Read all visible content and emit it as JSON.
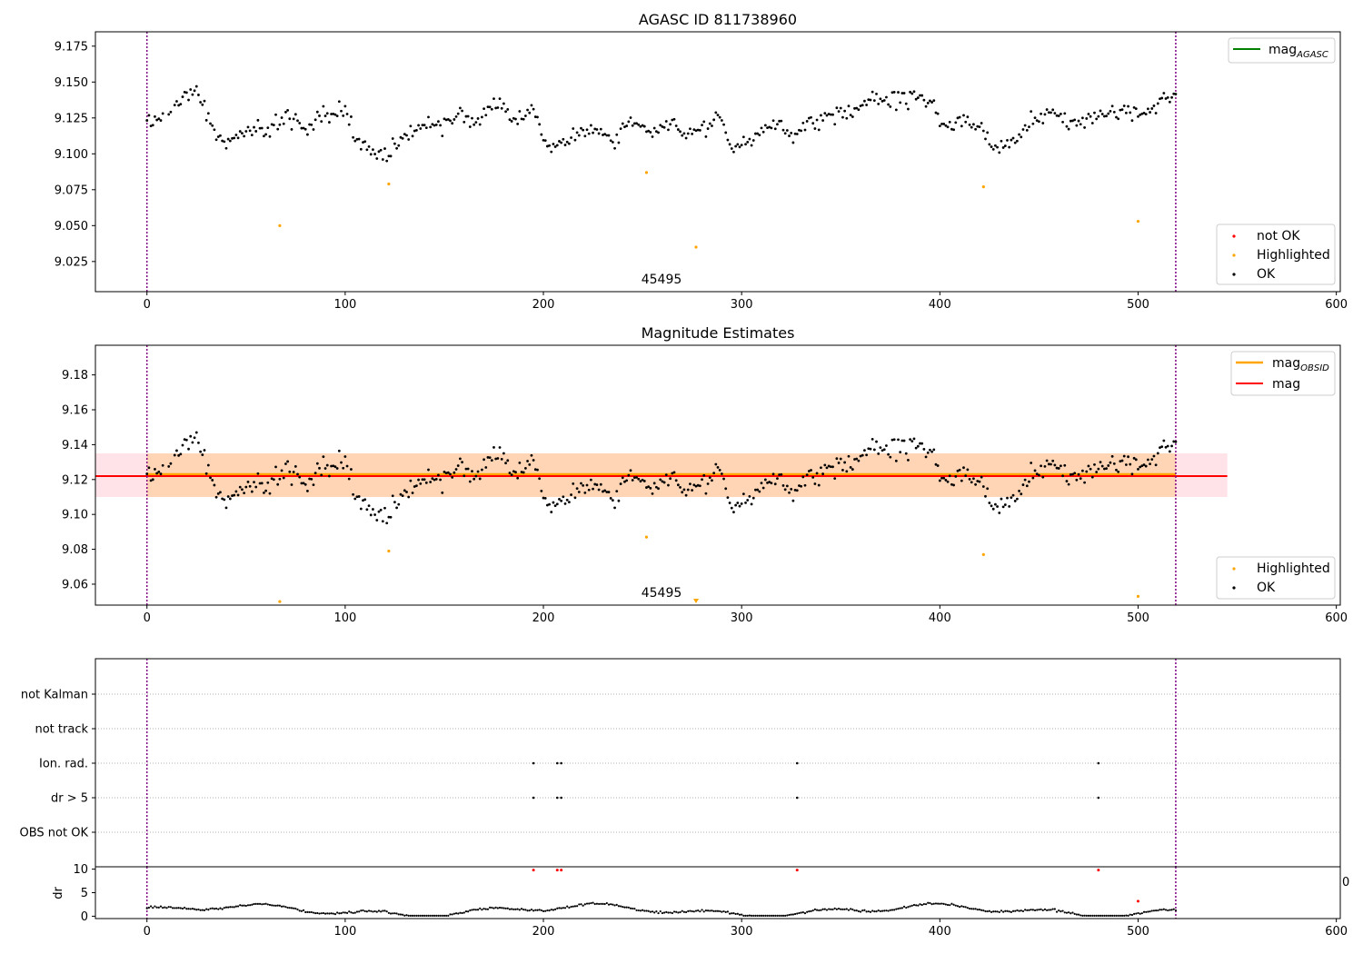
{
  "chart_data": [
    {
      "type": "scatter",
      "title": "AGASC ID 811738960",
      "xlabel": "",
      "ylabel": "",
      "xlim": [
        -26,
        602
      ],
      "ylim": [
        9.004,
        9.185
      ],
      "xticks": [
        0,
        100,
        200,
        300,
        400,
        500,
        600
      ],
      "yticks": [
        9.025,
        9.05,
        9.075,
        9.1,
        9.125,
        9.15,
        9.175
      ],
      "ytick_labels": [
        "9.025",
        "9.050",
        "9.075",
        "9.100",
        "9.125",
        "9.150",
        "9.175"
      ],
      "vlines": [
        0,
        519
      ],
      "annotation": {
        "text": "45495",
        "x": 260,
        "y": 9.012
      },
      "legend_top": {
        "placement": "top-right",
        "entries": [
          {
            "label_main": "mag",
            "label_sub": "AGASC",
            "color": "#008000"
          }
        ]
      },
      "legend_bottom": {
        "placement": "bottom-right",
        "entries": [
          {
            "label": "not OK",
            "color": "#ff0000"
          },
          {
            "label": "Highlighted",
            "color": "#ffa500"
          },
          {
            "label": "OK",
            "color": "#000000"
          }
        ]
      },
      "highlighted": [
        [
          67,
          9.05
        ],
        [
          122,
          9.079
        ],
        [
          252,
          9.087
        ],
        [
          277,
          9.035
        ],
        [
          422,
          9.077
        ],
        [
          500,
          9.053
        ]
      ],
      "ok_anchors": [
        [
          0,
          9.121
        ],
        [
          10,
          9.127
        ],
        [
          18,
          9.14
        ],
        [
          25,
          9.146
        ],
        [
          32,
          9.119
        ],
        [
          40,
          9.106
        ],
        [
          48,
          9.116
        ],
        [
          55,
          9.121
        ],
        [
          62,
          9.113
        ],
        [
          70,
          9.128
        ],
        [
          80,
          9.117
        ],
        [
          90,
          9.126
        ],
        [
          100,
          9.132
        ],
        [
          108,
          9.106
        ],
        [
          116,
          9.098
        ],
        [
          124,
          9.104
        ],
        [
          132,
          9.114
        ],
        [
          140,
          9.123
        ],
        [
          148,
          9.118
        ],
        [
          156,
          9.13
        ],
        [
          165,
          9.123
        ],
        [
          175,
          9.134
        ],
        [
          185,
          9.125
        ],
        [
          195,
          9.13
        ],
        [
          200,
          9.11
        ],
        [
          208,
          9.105
        ],
        [
          216,
          9.112
        ],
        [
          225,
          9.117
        ],
        [
          235,
          9.112
        ],
        [
          245,
          9.12
        ],
        [
          255,
          9.116
        ],
        [
          265,
          9.122
        ],
        [
          272,
          9.114
        ],
        [
          282,
          9.12
        ],
        [
          288,
          9.128
        ],
        [
          295,
          9.103
        ],
        [
          305,
          9.108
        ],
        [
          315,
          9.122
        ],
        [
          325,
          9.113
        ],
        [
          335,
          9.119
        ],
        [
          345,
          9.127
        ],
        [
          355,
          9.13
        ],
        [
          365,
          9.137
        ],
        [
          375,
          9.137
        ],
        [
          385,
          9.14
        ],
        [
          395,
          9.136
        ],
        [
          402,
          9.12
        ],
        [
          410,
          9.125
        ],
        [
          420,
          9.118
        ],
        [
          428,
          9.102
        ],
        [
          436,
          9.108
        ],
        [
          444,
          9.121
        ],
        [
          452,
          9.125
        ],
        [
          460,
          9.127
        ],
        [
          470,
          9.12
        ],
        [
          480,
          9.127
        ],
        [
          490,
          9.131
        ],
        [
          500,
          9.128
        ],
        [
          510,
          9.135
        ],
        [
          519,
          9.144
        ]
      ],
      "x_range": [
        0,
        519
      ],
      "noise": 0.008
    },
    {
      "type": "scatter",
      "title": "Magnitude Estimates",
      "xlabel": "",
      "ylabel": "",
      "xlim": [
        -26,
        602
      ],
      "ylim": [
        9.048,
        9.197
      ],
      "xticks": [
        0,
        100,
        200,
        300,
        400,
        500,
        600
      ],
      "yticks": [
        9.06,
        9.08,
        9.1,
        9.12,
        9.14,
        9.16,
        9.18
      ],
      "ytick_labels": [
        "9.06",
        "9.08",
        "9.10",
        "9.12",
        "9.14",
        "9.16",
        "9.18"
      ],
      "vlines": [
        0,
        519
      ],
      "annotation": {
        "text": "45495",
        "x": 260,
        "y": 9.054
      },
      "mag": {
        "value": 9.122,
        "color": "#ff0000",
        "band": [
          9.11,
          9.135
        ],
        "band_x": [
          -26,
          545
        ],
        "band_color": "#ffc0cb"
      },
      "mag_obsid": {
        "value": 9.123,
        "color": "#ffa500",
        "band": [
          9.11,
          9.135
        ],
        "band_x": [
          0,
          519
        ]
      },
      "legend_top": {
        "placement": "top-right",
        "entries": [
          {
            "label_main": "mag",
            "label_sub": "OBSID",
            "color": "#ffa500"
          },
          {
            "label_main": "mag",
            "label_sub": "",
            "color": "#ff0000"
          }
        ]
      },
      "legend_bottom": {
        "placement": "bottom-right",
        "entries": [
          {
            "label": "Highlighted",
            "color": "#ffa500"
          },
          {
            "label": "OK",
            "color": "#000000"
          }
        ]
      },
      "highlighted": [
        [
          67,
          9.05
        ],
        [
          122,
          9.079
        ],
        [
          252,
          9.087
        ],
        [
          277,
          9.05
        ],
        [
          422,
          9.077
        ],
        [
          500,
          9.053
        ]
      ]
    },
    {
      "type": "scatter",
      "title": "",
      "xlabel": "",
      "ylabel": "",
      "xlim": [
        -26,
        602
      ],
      "categories": [
        "not Kalman",
        "not track",
        "Ion. rad.",
        "dr > 5",
        "OBS not OK"
      ],
      "vlines": [
        0,
        519
      ],
      "grid": "horizontal dotted",
      "flags": {
        "Ion. rad.": [
          195,
          207,
          209,
          328,
          480
        ],
        "dr > 5": [
          195,
          207,
          209,
          328,
          480
        ]
      }
    },
    {
      "type": "scatter",
      "title": "",
      "xlabel": "",
      "ylabel": "dr",
      "xlim": [
        -26,
        602
      ],
      "ylim": [
        -0.5,
        10.5
      ],
      "xticks": [
        0,
        100,
        200,
        300,
        400,
        500,
        600
      ],
      "yticks": [
        0,
        5,
        10
      ],
      "vlines": [
        0,
        519
      ],
      "outliers": [
        [
          195,
          9.8
        ],
        [
          207,
          9.8
        ],
        [
          209,
          9.8
        ],
        [
          328,
          9.8
        ],
        [
          480,
          9.8
        ],
        [
          500,
          3.2
        ]
      ],
      "right_edge_text": "0"
    }
  ]
}
